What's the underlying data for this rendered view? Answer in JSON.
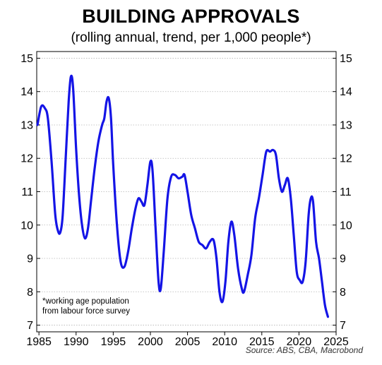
{
  "chart_data": {
    "type": "line",
    "title": "BUILDING APPROVALS",
    "subtitle": "(rolling annual, trend, per 1,000 people*)",
    "xlabel": "",
    "ylabel": "",
    "xlim": [
      1984.7,
      2025
    ],
    "ylim": [
      6.8,
      15.2
    ],
    "x_ticks": [
      "1985",
      "1990",
      "1995",
      "2000",
      "2005",
      "2010",
      "2015",
      "2020",
      "2025"
    ],
    "y_ticks": [
      "7",
      "8",
      "9",
      "10",
      "11",
      "12",
      "13",
      "14",
      "15"
    ],
    "grid": "horizontal dotted",
    "series": [
      {
        "color": "#1414e6",
        "points": [
          [
            1984.8,
            13.0
          ],
          [
            1985.3,
            13.55
          ],
          [
            1985.8,
            13.5
          ],
          [
            1986.2,
            13.2
          ],
          [
            1986.7,
            11.9
          ],
          [
            1987.2,
            10.3
          ],
          [
            1987.6,
            9.8
          ],
          [
            1987.9,
            9.8
          ],
          [
            1988.2,
            10.3
          ],
          [
            1988.6,
            12.0
          ],
          [
            1989.0,
            13.7
          ],
          [
            1989.3,
            14.45
          ],
          [
            1989.6,
            14.1
          ],
          [
            1990.0,
            12.3
          ],
          [
            1990.4,
            10.9
          ],
          [
            1990.8,
            10.0
          ],
          [
            1991.2,
            9.6
          ],
          [
            1991.6,
            9.9
          ],
          [
            1992.0,
            10.7
          ],
          [
            1992.5,
            11.7
          ],
          [
            1993.0,
            12.5
          ],
          [
            1993.5,
            13.0
          ],
          [
            1993.8,
            13.2
          ],
          [
            1994.1,
            13.7
          ],
          [
            1994.4,
            13.8
          ],
          [
            1994.7,
            13.2
          ],
          [
            1995.0,
            11.8
          ],
          [
            1995.5,
            10.0
          ],
          [
            1996.0,
            8.9
          ],
          [
            1996.5,
            8.75
          ],
          [
            1997.0,
            9.2
          ],
          [
            1997.5,
            9.9
          ],
          [
            1998.0,
            10.5
          ],
          [
            1998.4,
            10.8
          ],
          [
            1998.8,
            10.7
          ],
          [
            1999.2,
            10.6
          ],
          [
            1999.6,
            11.2
          ],
          [
            2000.0,
            11.9
          ],
          [
            2000.3,
            11.6
          ],
          [
            2000.7,
            9.9
          ],
          [
            2001.1,
            8.3
          ],
          [
            2001.4,
            8.1
          ],
          [
            2001.8,
            9.2
          ],
          [
            2002.3,
            10.8
          ],
          [
            2002.8,
            11.45
          ],
          [
            2003.3,
            11.5
          ],
          [
            2003.8,
            11.4
          ],
          [
            2004.3,
            11.45
          ],
          [
            2004.6,
            11.5
          ],
          [
            2005.0,
            11.0
          ],
          [
            2005.5,
            10.3
          ],
          [
            2006.0,
            9.9
          ],
          [
            2006.5,
            9.5
          ],
          [
            2007.0,
            9.4
          ],
          [
            2007.5,
            9.3
          ],
          [
            2008.0,
            9.5
          ],
          [
            2008.5,
            9.55
          ],
          [
            2008.9,
            9.0
          ],
          [
            2009.3,
            8.0
          ],
          [
            2009.7,
            7.7
          ],
          [
            2010.1,
            8.3
          ],
          [
            2010.5,
            9.5
          ],
          [
            2010.9,
            10.1
          ],
          [
            2011.3,
            9.7
          ],
          [
            2011.8,
            8.7
          ],
          [
            2012.3,
            8.1
          ],
          [
            2012.6,
            8.0
          ],
          [
            2013.1,
            8.5
          ],
          [
            2013.6,
            9.1
          ],
          [
            2014.1,
            10.2
          ],
          [
            2014.6,
            10.8
          ],
          [
            2015.1,
            11.5
          ],
          [
            2015.6,
            12.2
          ],
          [
            2016.1,
            12.2
          ],
          [
            2016.5,
            12.25
          ],
          [
            2016.9,
            12.1
          ],
          [
            2017.3,
            11.4
          ],
          [
            2017.7,
            11.0
          ],
          [
            2018.1,
            11.2
          ],
          [
            2018.5,
            11.4
          ],
          [
            2018.9,
            10.8
          ],
          [
            2019.3,
            9.7
          ],
          [
            2019.7,
            8.6
          ],
          [
            2020.1,
            8.35
          ],
          [
            2020.5,
            8.3
          ],
          [
            2020.9,
            8.9
          ],
          [
            2021.3,
            10.3
          ],
          [
            2021.6,
            10.8
          ],
          [
            2021.9,
            10.7
          ],
          [
            2022.3,
            9.5
          ],
          [
            2022.7,
            9.0
          ],
          [
            2023.1,
            8.3
          ],
          [
            2023.5,
            7.6
          ],
          [
            2023.9,
            7.25
          ]
        ]
      }
    ],
    "annotation": "*working age population\nfrom labour force survey",
    "source": "Source: ABS, CBA, Macrobond"
  }
}
